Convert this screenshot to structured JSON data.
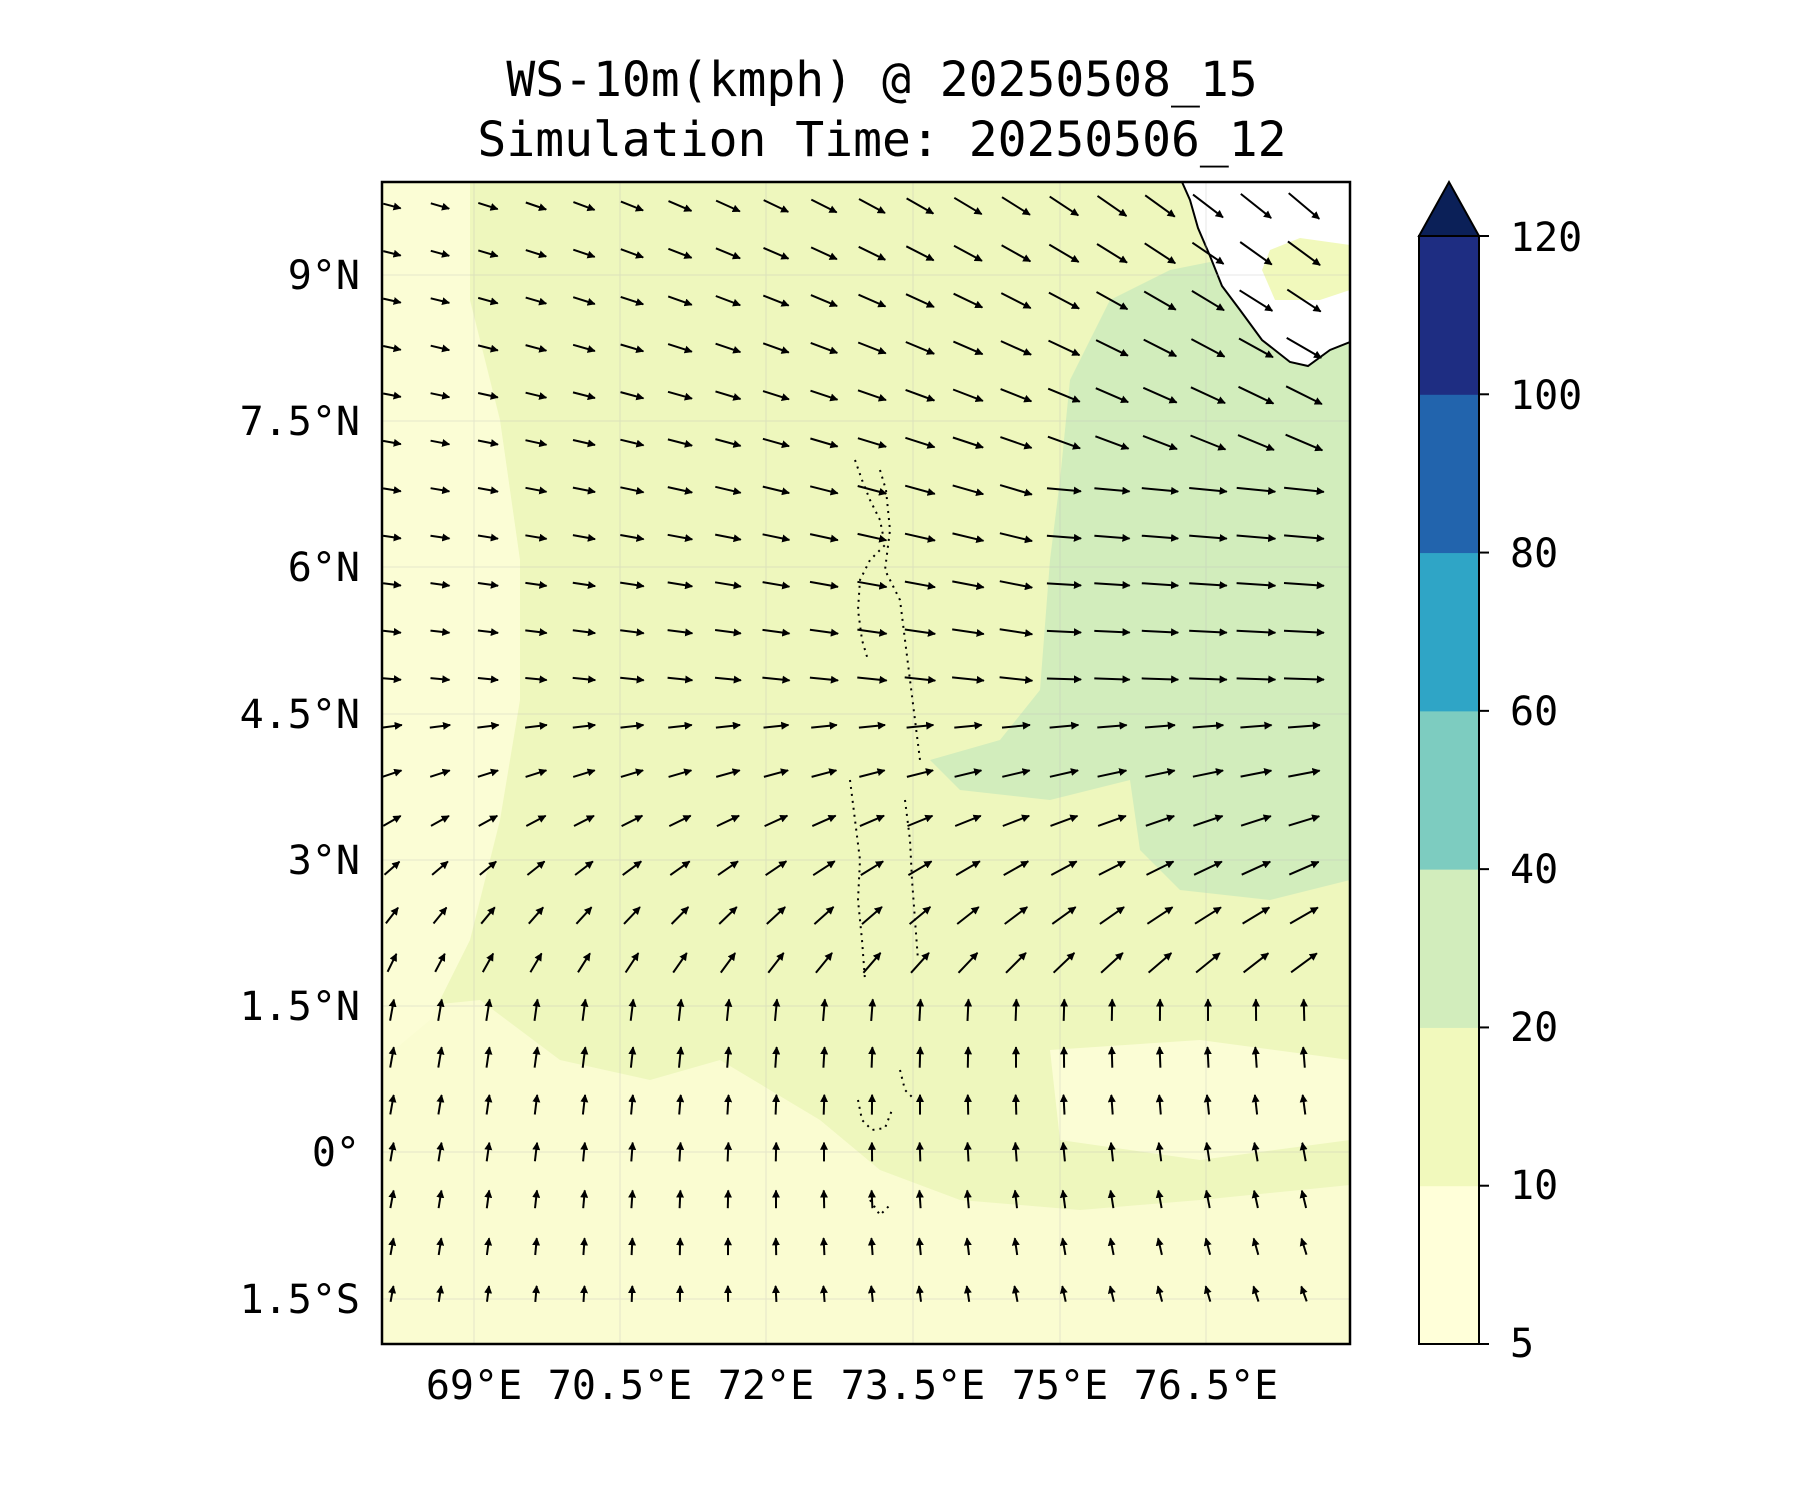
{
  "title": "WS-10m(kmph) @ 20250508_15",
  "subtitle": "Simulation Time: 20250506_12",
  "lat_labels": [
    "9°N",
    "7.5°N",
    "6°N",
    "4.5°N",
    "3°N",
    "1.5°N",
    "0°",
    "1.5°S"
  ],
  "lon_labels": [
    "69°E",
    "70.5°E",
    "72°E",
    "73.5°E",
    "75°E",
    "76.5°E"
  ],
  "colorbar": {
    "ticks": [
      "5",
      "10",
      "20",
      "40",
      "60",
      "80",
      "100",
      "120"
    ],
    "bins": [
      {
        "from": 5,
        "to": 10,
        "color": "#ffffd9"
      },
      {
        "from": 10,
        "to": 20,
        "color": "#f1f9bc"
      },
      {
        "from": 20,
        "to": 40,
        "color": "#d2edbc"
      },
      {
        "from": 40,
        "to": 60,
        "color": "#7dccc0"
      },
      {
        "from": 60,
        "to": 80,
        "color": "#2fa5c6"
      },
      {
        "from": 80,
        "to": 100,
        "color": "#2264ad"
      },
      {
        "from": 100,
        "to": 120,
        "color": "#1e2d82"
      }
    ],
    "extend_max_color": "#0b2058"
  },
  "map_colors": {
    "calm": "#ffffd9",
    "light": "#f1f9bc",
    "moderate": "#d2edbc",
    "land": "#ffffff"
  }
}
